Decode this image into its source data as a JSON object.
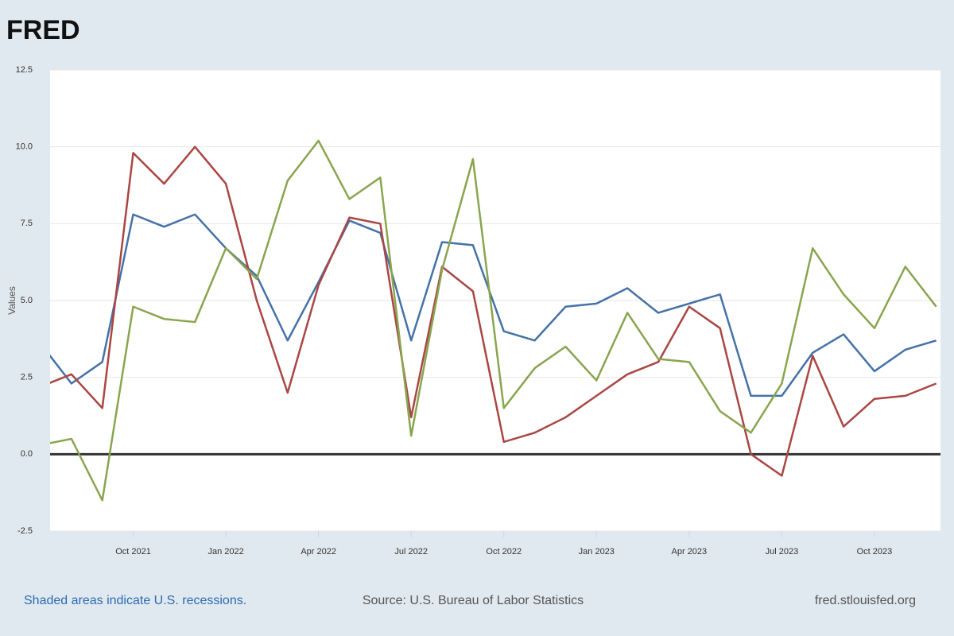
{
  "logo": "FRED",
  "chart_data": {
    "type": "line",
    "y_label": "Values",
    "categories": [
      null,
      null,
      null,
      "Oct 2021",
      null,
      null,
      "Jan 2022",
      null,
      null,
      "Apr 2022",
      null,
      null,
      "Jul 2022",
      null,
      null,
      "Oct 2022",
      null,
      null,
      "Jan 2023",
      null,
      null,
      "Apr 2023",
      null,
      null,
      "Jul 2023",
      null,
      null,
      "Oct 2023",
      null,
      null
    ],
    "series": [
      {
        "color": "#4572a7",
        "values": [
          3.6,
          2.3,
          3.0,
          7.8,
          7.4,
          7.8,
          6.7,
          5.8,
          3.7,
          5.6,
          7.6,
          7.2,
          3.7,
          6.9,
          6.8,
          4.0,
          3.7,
          4.8,
          4.9,
          5.4,
          4.6,
          4.9,
          5.2,
          1.9,
          1.9,
          3.3,
          3.9,
          2.7,
          3.4,
          3.7
        ]
      },
      {
        "color": "#aa4643",
        "values": [
          2.2,
          2.6,
          1.5,
          9.8,
          8.8,
          10.0,
          8.8,
          5.0,
          2.0,
          5.5,
          7.7,
          7.5,
          1.2,
          6.1,
          5.3,
          0.4,
          0.7,
          1.2,
          1.9,
          2.6,
          3.0,
          4.8,
          4.1,
          0.0,
          -0.7,
          3.2,
          0.9,
          1.8,
          1.9,
          2.3
        ]
      },
      {
        "color": "#89a54e",
        "values": [
          0.3,
          0.5,
          -1.5,
          4.8,
          4.4,
          4.3,
          6.7,
          5.7,
          8.9,
          10.2,
          8.3,
          9.0,
          0.6,
          6.0,
          9.6,
          1.5,
          2.8,
          3.5,
          2.4,
          4.6,
          3.1,
          3.0,
          1.4,
          0.7,
          2.3,
          6.7,
          5.2,
          4.1,
          6.1,
          4.8
        ]
      }
    ],
    "ylim": [
      -2.5,
      12.5
    ],
    "yticks": [
      -2.5,
      {
        "value": 0,
        "label": "0.0"
      },
      2.5,
      {
        "value": 5,
        "label": "5.0"
      },
      7.5,
      {
        "value": 10,
        "label": "10.0"
      },
      12.5
    ],
    "grid": true,
    "footer": {
      "left": "Shaded areas indicate U.S. recessions.",
      "center": "Source: U.S. Bureau of Labor Statistics",
      "right": "fred.stlouisfed.org"
    }
  }
}
